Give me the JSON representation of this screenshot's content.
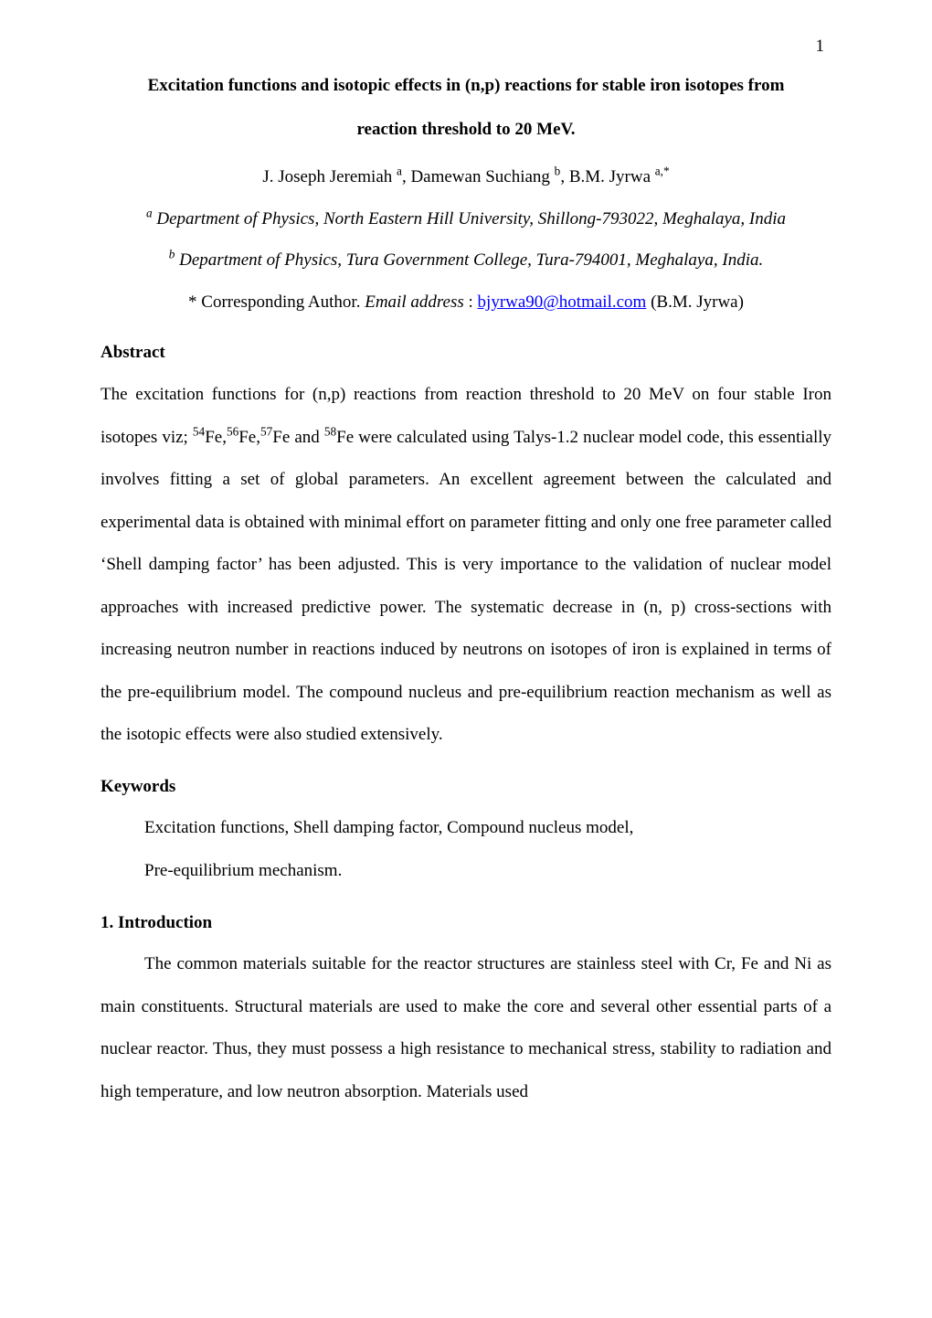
{
  "page_meta": {
    "page_number": "1",
    "background_color": "#ffffff",
    "text_color": "#000000",
    "link_color": "#0000ff",
    "font_family": "Times New Roman",
    "base_fontsize_pt": 12
  },
  "title": {
    "line1": "Excitation functions and isotopic effects in (n,p) reactions for stable iron isotopes from",
    "line2": "reaction threshold to 20 MeV."
  },
  "authors": {
    "a1_name": "J. Joseph Jeremiah ",
    "a1_sup": "a",
    "sep1": ", ",
    "a2_name": "Damewan Suchiang ",
    "a2_sup": "b",
    "sep2": ", ",
    "a3_name": "B.M. Jyrwa ",
    "a3_sup": "a,*"
  },
  "affiliations": {
    "aff1_sup": "a",
    "aff1_text": " Department of Physics, North Eastern Hill University, Shillong-793022, Meghalaya, India",
    "aff2_sup": "b",
    "aff2_text": " Department of Physics, Tura Government College, Tura-794001, Meghalaya, India."
  },
  "corresponding": {
    "prefix": "* Corresponding Author. ",
    "label_italic": "Email address",
    "sep": " : ",
    "email": "bjyrwa90@hotmail.com",
    "suffix": " (B.M. Jyrwa)"
  },
  "sections": {
    "abstract_heading": "Abstract",
    "abstract_body": {
      "seg1": "The excitation functions for (n,p) reactions from reaction threshold to 20 MeV on four stable Iron isotopes viz; ",
      "sup1": "54",
      "seg2": "Fe,",
      "sup2": "56",
      "seg3": "Fe,",
      "sup3": "57",
      "seg4": "Fe and ",
      "sup4": "58",
      "seg5": "Fe were calculated using Talys-1.2 nuclear model code, this essentially involves fitting a set of global parameters.  An excellent agreement between the calculated and experimental data is obtained with minimal effort on parameter fitting and only one free parameter called ‘Shell damping factor’ has been adjusted.  This is very importance to the validation of nuclear model approaches with increased predictive power.  The systematic decrease in (n, p) cross-sections with increasing neutron number in reactions induced by neutrons on isotopes of iron is explained in terms of the pre-equilibrium model.  The compound nucleus and pre-equilibrium reaction mechanism as well as the isotopic effects were also studied extensively."
    },
    "keywords_heading": "Keywords",
    "keywords_line1": "Excitation functions, Shell damping factor, Compound nucleus model,",
    "keywords_line2": "Pre-equilibrium  mechanism.",
    "intro_heading": "1.  Introduction",
    "intro_body": "The common materials suitable for the reactor structures are stainless steel with Cr, Fe and Ni as main constituents.  Structural materials are used to make the core and several other essential parts of a nuclear reactor.  Thus, they must possess a high resistance to mechanical stress, stability to radiation and high temperature, and low neutron absorption.  Materials used"
  }
}
